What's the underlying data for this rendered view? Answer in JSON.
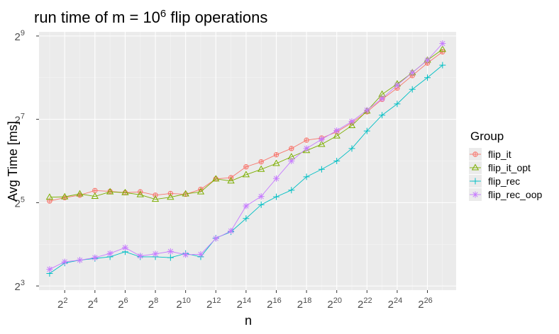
{
  "chart_data": {
    "type": "line",
    "title_main": "run time of m = 10",
    "title_sup": "6",
    "title_rest": " flip operations",
    "xlabel": "n",
    "ylabel": "Avg Time [ms]",
    "x_scale": "log2",
    "y_scale": "log2",
    "xlim": [
      0.3,
      27.9
    ],
    "ylim": [
      2.9,
      9.1
    ],
    "x_ticks": [
      {
        "base": "2",
        "exp": "2"
      },
      {
        "base": "2",
        "exp": "4"
      },
      {
        "base": "2",
        "exp": "6"
      },
      {
        "base": "2",
        "exp": "8"
      },
      {
        "base": "2",
        "exp": "10"
      },
      {
        "base": "2",
        "exp": "12"
      },
      {
        "base": "2",
        "exp": "14"
      },
      {
        "base": "2",
        "exp": "16"
      },
      {
        "base": "2",
        "exp": "18"
      },
      {
        "base": "2",
        "exp": "20"
      },
      {
        "base": "2",
        "exp": "22"
      },
      {
        "base": "2",
        "exp": "24"
      },
      {
        "base": "2",
        "exp": "26"
      }
    ],
    "y_ticks": [
      {
        "base": "2",
        "exp": "3"
      },
      {
        "base": "2",
        "exp": "5"
      },
      {
        "base": "2",
        "exp": "7"
      },
      {
        "base": "2",
        "exp": "9"
      }
    ],
    "x_log2": [
      1,
      2,
      3,
      4,
      5,
      6,
      7,
      8,
      9,
      10,
      11,
      12,
      13,
      14,
      15,
      16,
      17,
      18,
      19,
      20,
      21,
      22,
      23,
      24,
      25,
      26,
      27
    ],
    "legend_title": "Group",
    "legend_position": "right",
    "grid": true,
    "series": [
      {
        "name": "flip_it",
        "color": "#F8766D",
        "marker": "circle-plus",
        "y_log2": [
          5.04,
          5.12,
          5.18,
          5.29,
          5.27,
          5.24,
          5.26,
          5.18,
          5.22,
          5.2,
          5.32,
          5.57,
          5.6,
          5.86,
          5.98,
          6.15,
          6.3,
          6.5,
          6.55,
          6.7,
          6.92,
          7.18,
          7.48,
          7.75,
          8.05,
          8.35,
          8.62
        ]
      },
      {
        "name": "flip_it_opt",
        "color": "#7CAE00",
        "marker": "triangle",
        "y_log2": [
          5.13,
          5.14,
          5.21,
          5.15,
          5.26,
          5.24,
          5.19,
          5.08,
          5.13,
          5.21,
          5.26,
          5.57,
          5.52,
          5.67,
          5.8,
          5.94,
          6.1,
          6.25,
          6.4,
          6.6,
          6.85,
          7.2,
          7.6,
          7.85,
          8.12,
          8.42,
          8.68
        ]
      },
      {
        "name": "flip_rec",
        "color": "#00BFC4",
        "marker": "plus",
        "y_log2": [
          3.3,
          3.55,
          3.62,
          3.66,
          3.7,
          3.82,
          3.7,
          3.7,
          3.68,
          3.78,
          3.7,
          4.15,
          4.3,
          4.62,
          4.95,
          5.14,
          5.3,
          5.62,
          5.8,
          6.0,
          6.3,
          6.72,
          7.1,
          7.37,
          7.72,
          8.0,
          8.3
        ]
      },
      {
        "name": "flip_rec_oop",
        "color": "#C77CFF",
        "marker": "asterisk",
        "y_log2": [
          3.4,
          3.58,
          3.62,
          3.68,
          3.78,
          3.92,
          3.72,
          3.77,
          3.83,
          3.75,
          3.76,
          4.14,
          4.32,
          4.92,
          5.15,
          5.58,
          6.0,
          6.3,
          6.52,
          6.73,
          6.95,
          7.22,
          7.5,
          7.82,
          8.12,
          8.42,
          8.82
        ]
      }
    ]
  }
}
